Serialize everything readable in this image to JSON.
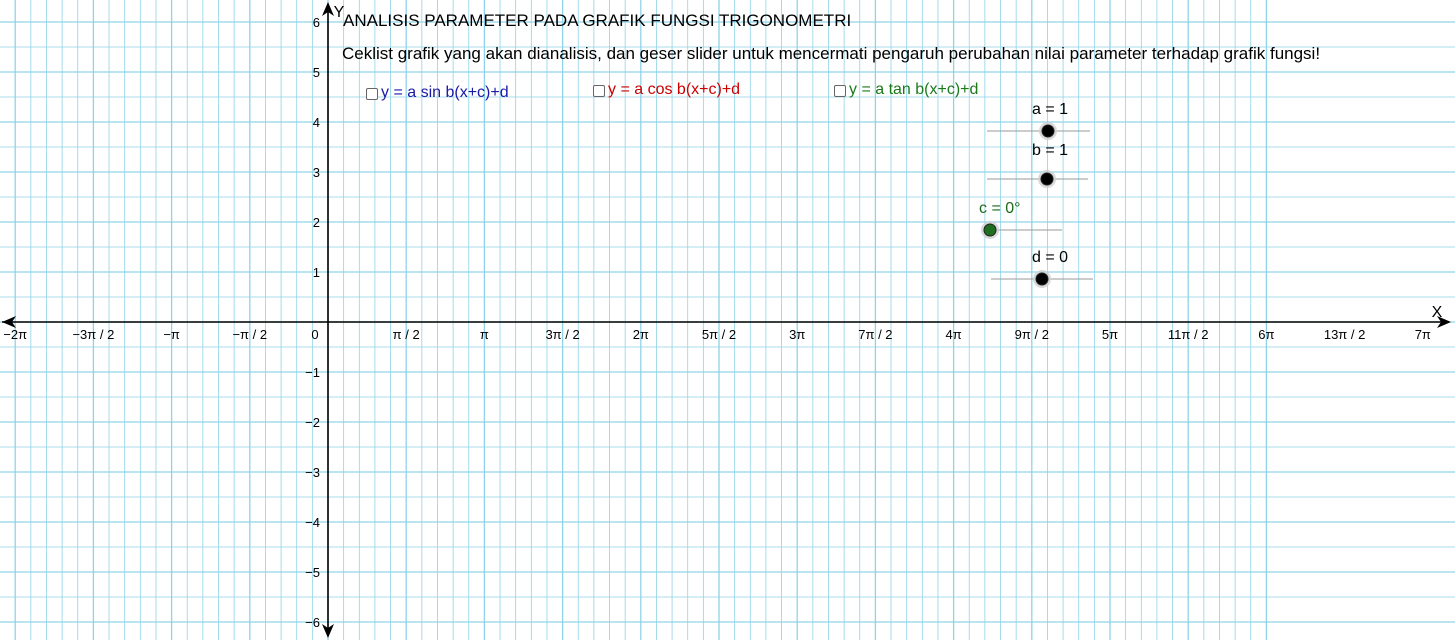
{
  "header": {
    "title": "ANALISIS PARAMETER PADA GRAFIK FUNGSI TRIGONOMETRI",
    "instruction": "Ceklist grafik yang akan dianalisis, dan geser slider untuk mencermati pengaruh perubahan nilai parameter terhadap grafik fungsi!"
  },
  "checkboxes": [
    {
      "label": "y = a sin b(x+c)+d",
      "checked": false,
      "color": "#1a1aa6"
    },
    {
      "label": "y = a cos b(x+c)+d",
      "checked": false,
      "color": "#cc0000"
    },
    {
      "label": "y = a tan b(x+c)+d",
      "checked": false,
      "color": "#1a7a1a"
    }
  ],
  "sliders": [
    {
      "label": "a = 1",
      "value": 1,
      "color": "#000000"
    },
    {
      "label": "b = 1",
      "value": 1,
      "color": "#000000"
    },
    {
      "label": "c = 0°",
      "value": 0,
      "color": "#1a6a1a"
    },
    {
      "label": "d = 0",
      "value": 0,
      "color": "#000000"
    }
  ],
  "axes": {
    "x_label": "X",
    "y_label": "Y",
    "origin_label": "0",
    "x_ticks": [
      "−2π",
      "−3π / 2",
      "−π",
      "−π / 2",
      "π / 2",
      "π",
      "3π / 2",
      "2π",
      "5π / 2",
      "3π",
      "7π / 2",
      "4π",
      "9π / 2",
      "5π",
      "11π / 2",
      "6π",
      "13π / 2",
      "7π"
    ],
    "x_tick_values": [
      -4,
      -3,
      -2,
      -1,
      1,
      2,
      3,
      4,
      5,
      6,
      7,
      8,
      9,
      10,
      11,
      12,
      13,
      14
    ],
    "y_ticks": [
      "6",
      "5",
      "4",
      "3",
      "2",
      "1",
      "−1",
      "−2",
      "−3",
      "−4",
      "−5",
      "−6"
    ],
    "y_tick_values": [
      6,
      5,
      4,
      3,
      2,
      1,
      -1,
      -2,
      -3,
      -4,
      -5,
      -6
    ],
    "grid_color": "#8fd3e8",
    "grid": true
  }
}
